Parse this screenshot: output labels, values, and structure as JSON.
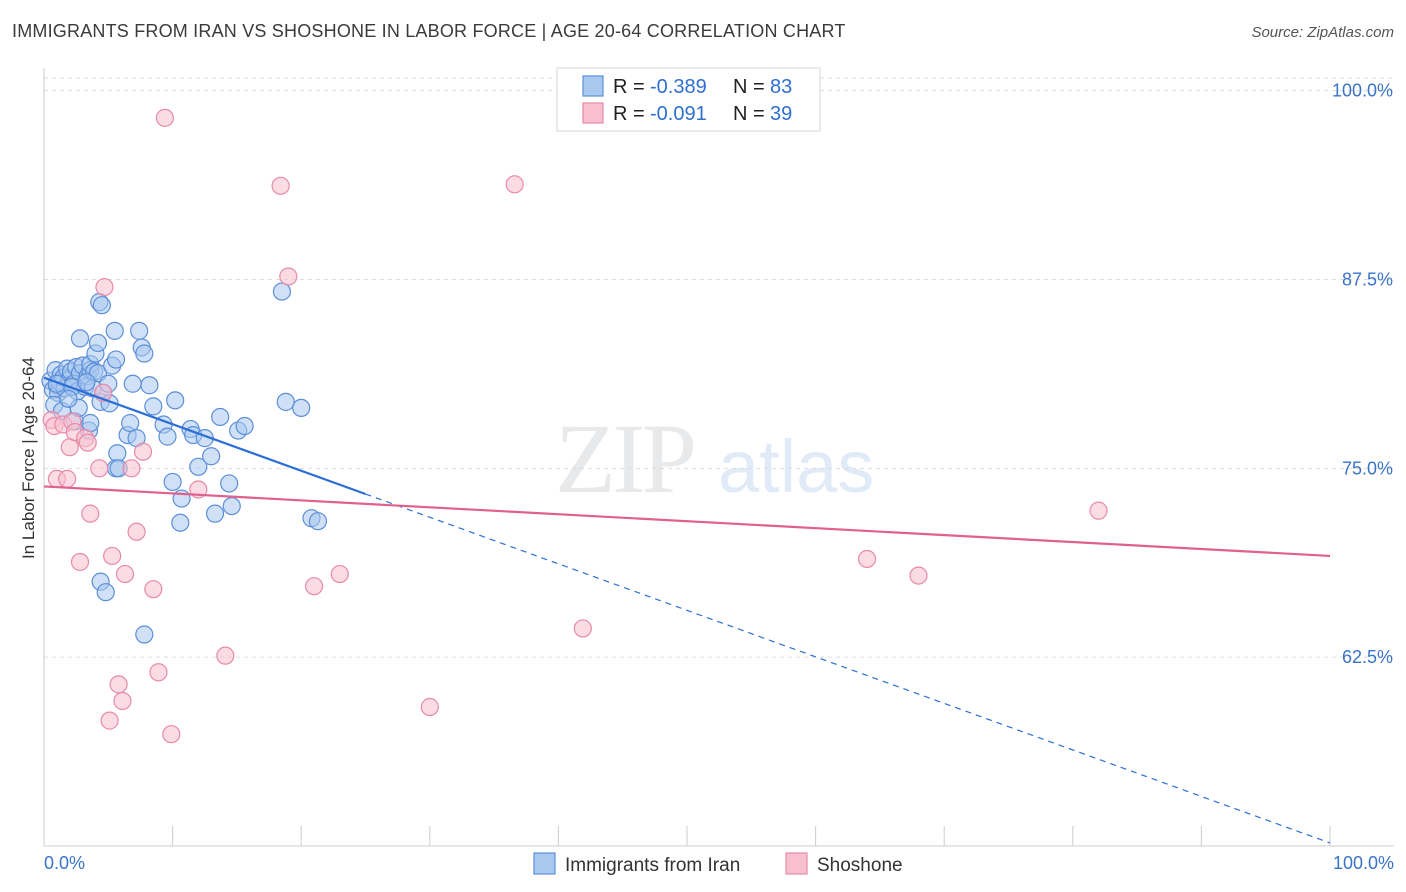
{
  "title": "IMMIGRANTS FROM IRAN VS SHOSHONE IN LABOR FORCE | AGE 20-64 CORRELATION CHART",
  "source": "Source: ZipAtlas.com",
  "watermark": {
    "zip": "ZIP",
    "atlas": "atlas"
  },
  "colors": {
    "iran_fill": "#a9c8f0",
    "iran_stroke": "#5b8fd8",
    "iran_line": "#2b6fd6",
    "shoshone_fill": "#f7bfd0",
    "shoshone_stroke": "#e88aa8",
    "shoshone_line": "#e0608e",
    "tick_text": "#3a73c8",
    "grid": "#dddddd"
  },
  "legend": {
    "rows": [
      {
        "r_label": "R =",
        "r_value": "-0.389",
        "n_label": "N =",
        "n_value": "83"
      },
      {
        "r_label": "R =",
        "r_value": "-0.091",
        "n_label": "N =",
        "n_value": "39"
      }
    ]
  },
  "chart_data": {
    "type": "scatter",
    "title": "IMMIGRANTS FROM IRAN VS SHOSHONE IN LABOR FORCE | AGE 20-64 CORRELATION CHART",
    "xlabel": "",
    "ylabel": "In Labor Force | Age 20-64",
    "xlim": [
      0,
      100
    ],
    "ylim": [
      50,
      101.5
    ],
    "x_tick_labels": [
      "0.0%",
      "100.0%"
    ],
    "y_ticks": [
      62.5,
      75.0,
      87.5,
      100.0
    ],
    "y_tick_labels": [
      "62.5%",
      "75.0%",
      "87.5%",
      "100.0%"
    ],
    "grid": true,
    "series": [
      {
        "name": "Immigrants from Iran",
        "r": -0.389,
        "n": 83,
        "trend": {
          "x0": 0,
          "y0": 81.0,
          "x1": 100,
          "y1": 50.2,
          "solid_until_x": 25
        },
        "points": [
          [
            0.5,
            80.8
          ],
          [
            0.7,
            80.2
          ],
          [
            0.9,
            81.5
          ],
          [
            1.0,
            80.5
          ],
          [
            1.1,
            80.0
          ],
          [
            1.2,
            80.7
          ],
          [
            1.3,
            81.2
          ],
          [
            1.5,
            81.0
          ],
          [
            1.6,
            80.3
          ],
          [
            1.8,
            81.6
          ],
          [
            2.0,
            80.9
          ],
          [
            2.1,
            81.4
          ],
          [
            2.3,
            80.6
          ],
          [
            2.5,
            81.7
          ],
          [
            2.6,
            80.1
          ],
          [
            2.8,
            81.3
          ],
          [
            3.0,
            81.8
          ],
          [
            3.2,
            80.4
          ],
          [
            3.4,
            81.1
          ],
          [
            3.6,
            81.5
          ],
          [
            0.8,
            79.2
          ],
          [
            1.4,
            78.8
          ],
          [
            2.4,
            78.1
          ],
          [
            2.7,
            79.0
          ],
          [
            3.5,
            77.5
          ],
          [
            3.6,
            78.0
          ],
          [
            2.8,
            83.6
          ],
          [
            3.6,
            81.9
          ],
          [
            3.9,
            81.4
          ],
          [
            4.0,
            82.6
          ],
          [
            4.2,
            83.3
          ],
          [
            3.8,
            80.3
          ],
          [
            4.4,
            79.4
          ],
          [
            4.6,
            80.0
          ],
          [
            4.2,
            81.3
          ],
          [
            5.0,
            80.6
          ],
          [
            5.1,
            79.3
          ],
          [
            5.3,
            81.8
          ],
          [
            5.5,
            84.1
          ],
          [
            5.6,
            82.2
          ],
          [
            4.3,
            86.0
          ],
          [
            4.5,
            85.8
          ],
          [
            5.7,
            76.0
          ],
          [
            5.6,
            75.0
          ],
          [
            5.8,
            75.0
          ],
          [
            6.5,
            77.2
          ],
          [
            6.7,
            78.0
          ],
          [
            6.9,
            80.6
          ],
          [
            7.2,
            77.0
          ],
          [
            7.4,
            84.1
          ],
          [
            7.6,
            83.0
          ],
          [
            7.8,
            82.6
          ],
          [
            8.2,
            80.5
          ],
          [
            8.5,
            79.1
          ],
          [
            9.3,
            77.9
          ],
          [
            9.6,
            77.1
          ],
          [
            10.2,
            79.5
          ],
          [
            10.0,
            74.1
          ],
          [
            10.7,
            73.0
          ],
          [
            10.6,
            71.4
          ],
          [
            11.4,
            77.6
          ],
          [
            11.6,
            77.2
          ],
          [
            12.0,
            75.1
          ],
          [
            12.5,
            77.0
          ],
          [
            13.0,
            75.8
          ],
          [
            13.3,
            72.0
          ],
          [
            13.7,
            78.4
          ],
          [
            14.4,
            74.0
          ],
          [
            14.6,
            72.5
          ],
          [
            15.1,
            77.5
          ],
          [
            15.6,
            77.8
          ],
          [
            18.5,
            86.7
          ],
          [
            18.8,
            79.4
          ],
          [
            20.0,
            79.0
          ],
          [
            20.8,
            71.7
          ],
          [
            21.3,
            71.5
          ],
          [
            4.4,
            67.5
          ],
          [
            4.8,
            66.8
          ],
          [
            7.8,
            64.0
          ],
          [
            1.0,
            80.6
          ],
          [
            2.2,
            80.4
          ],
          [
            3.3,
            80.7
          ],
          [
            1.9,
            79.6
          ]
        ]
      },
      {
        "name": "Shoshone",
        "r": -0.091,
        "n": 39,
        "trend": {
          "x0": 0,
          "y0": 73.8,
          "x1": 100,
          "y1": 69.2
        },
        "points": [
          [
            0.6,
            78.2
          ],
          [
            0.8,
            77.8
          ],
          [
            1.0,
            74.3
          ],
          [
            1.5,
            77.9
          ],
          [
            1.8,
            74.3
          ],
          [
            2.0,
            76.4
          ],
          [
            2.2,
            78.1
          ],
          [
            2.4,
            77.4
          ],
          [
            2.8,
            68.8
          ],
          [
            3.2,
            77.0
          ],
          [
            3.4,
            76.7
          ],
          [
            3.6,
            72.0
          ],
          [
            4.3,
            75.0
          ],
          [
            4.6,
            80.0
          ],
          [
            4.7,
            87.0
          ],
          [
            5.3,
            69.2
          ],
          [
            6.3,
            68.0
          ],
          [
            6.8,
            75.0
          ],
          [
            7.2,
            70.8
          ],
          [
            7.7,
            76.1
          ],
          [
            8.5,
            67.0
          ],
          [
            8.9,
            61.5
          ],
          [
            9.4,
            98.2
          ],
          [
            9.9,
            57.4
          ],
          [
            12.0,
            73.6
          ],
          [
            14.1,
            62.6
          ],
          [
            18.4,
            93.7
          ],
          [
            19.0,
            87.7
          ],
          [
            21.0,
            67.2
          ],
          [
            23.0,
            68.0
          ],
          [
            30.0,
            59.2
          ],
          [
            36.6,
            93.8
          ],
          [
            41.9,
            64.4
          ],
          [
            64.0,
            69.0
          ],
          [
            68.0,
            67.9
          ],
          [
            82.0,
            72.2
          ],
          [
            5.8,
            60.7
          ],
          [
            6.1,
            59.6
          ],
          [
            5.1,
            58.3
          ]
        ]
      }
    ]
  }
}
